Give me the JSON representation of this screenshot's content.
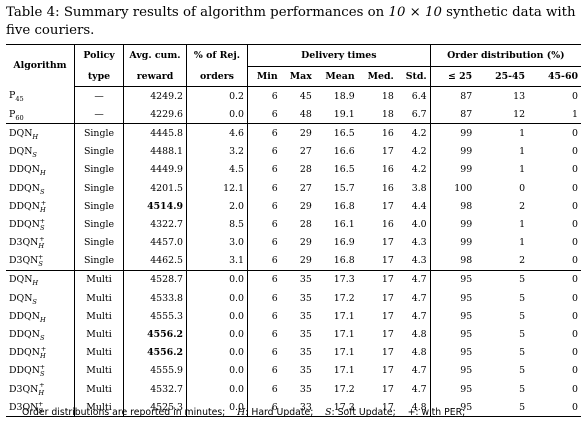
{
  "caption": {
    "label": "Table 4:",
    "text_before": "Summary results of algorithm performances on",
    "math": "10 × 10",
    "text_after": "synthetic data with five couriers."
  },
  "headers": {
    "algorithm": "Algorithm",
    "policy_1": "Policy",
    "policy_2": "type",
    "reward_1": "Avg. cum.",
    "reward_2": "reward",
    "rej_1": "% of Rej.",
    "rej_2": "orders",
    "delivery_group": "Delivery times",
    "min": "Min",
    "max": "Max",
    "mean": "Mean",
    "med": "Med.",
    "std": "Std.",
    "order_group": "Order distribution (%)",
    "d1": "≤ 25",
    "d2": "25-45",
    "d3": "45-60"
  },
  "groups": [
    {
      "rows": [
        {
          "alg": "P",
          "sub": "45",
          "sup": "",
          "policy": "—",
          "reward": "4249.2",
          "rej": "0.2",
          "min": "6",
          "max": "45",
          "mean": "18.9",
          "med": "18",
          "std": "6.4",
          "d1": "87",
          "d2": "13",
          "d3": "0"
        },
        {
          "alg": "P",
          "sub": "60",
          "sup": "",
          "policy": "—",
          "reward": "4229.6",
          "rej": "0.0",
          "min": "6",
          "max": "48",
          "mean": "19.1",
          "med": "18",
          "std": "6.7",
          "d1": "87",
          "d2": "12",
          "d3": "1"
        }
      ]
    },
    {
      "rows": [
        {
          "alg": "DQN",
          "sub": "H",
          "sup": "",
          "policy": "Single",
          "reward": "4445.8",
          "rej": "4.6",
          "min": "6",
          "max": "29",
          "mean": "16.5",
          "med": "16",
          "std": "4.2",
          "d1": "99",
          "d2": "1",
          "d3": "0"
        },
        {
          "alg": "DQN",
          "sub": "S",
          "sup": "",
          "policy": "Single",
          "reward": "4488.1",
          "rej": "3.2",
          "min": "6",
          "max": "27",
          "mean": "16.6",
          "med": "17",
          "std": "4.2",
          "d1": "99",
          "d2": "1",
          "d3": "0"
        },
        {
          "alg": "DDQN",
          "sub": "H",
          "sup": "",
          "policy": "Single",
          "reward": "4449.9",
          "rej": "4.5",
          "min": "6",
          "max": "28",
          "mean": "16.5",
          "med": "16",
          "std": "4.2",
          "d1": "99",
          "d2": "1",
          "d3": "0"
        },
        {
          "alg": "DDQN",
          "sub": "S",
          "sup": "",
          "policy": "Single",
          "reward": "4201.5",
          "rej": "12.1",
          "min": "6",
          "max": "27",
          "mean": "15.7",
          "med": "16",
          "std": "3.8",
          "d1": "100",
          "d2": "0",
          "d3": "0"
        },
        {
          "alg": "DDQN",
          "sub": "H",
          "sup": "+",
          "policy": "Single",
          "reward": "4514.9",
          "bold": true,
          "rej": "2.0",
          "min": "6",
          "max": "29",
          "mean": "16.8",
          "med": "17",
          "std": "4.4",
          "d1": "98",
          "d2": "2",
          "d3": "0"
        },
        {
          "alg": "DDQN",
          "sub": "S",
          "sup": "+",
          "policy": "Single",
          "reward": "4322.7",
          "rej": "8.5",
          "min": "6",
          "max": "28",
          "mean": "16.1",
          "med": "16",
          "std": "4.0",
          "d1": "99",
          "d2": "1",
          "d3": "0"
        },
        {
          "alg": "D3QN",
          "sub": "H",
          "sup": "+",
          "policy": "Single",
          "reward": "4457.0",
          "rej": "3.0",
          "min": "6",
          "max": "29",
          "mean": "16.9",
          "med": "17",
          "std": "4.3",
          "d1": "99",
          "d2": "1",
          "d3": "0"
        },
        {
          "alg": "D3QN",
          "sub": "S",
          "sup": "+",
          "policy": "Single",
          "reward": "4462.5",
          "rej": "3.1",
          "min": "6",
          "max": "29",
          "mean": "16.8",
          "med": "17",
          "std": "4.3",
          "d1": "98",
          "d2": "2",
          "d3": "0"
        }
      ]
    },
    {
      "rows": [
        {
          "alg": "DQN",
          "sub": "H",
          "sup": "",
          "policy": "Multi",
          "reward": "4528.7",
          "rej": "0.0",
          "min": "6",
          "max": "35",
          "mean": "17.3",
          "med": "17",
          "std": "4.7",
          "d1": "95",
          "d2": "5",
          "d3": "0"
        },
        {
          "alg": "DQN",
          "sub": "S",
          "sup": "",
          "policy": "Multi",
          "reward": "4533.8",
          "rej": "0.0",
          "min": "6",
          "max": "35",
          "mean": "17.2",
          "med": "17",
          "std": "4.7",
          "d1": "95",
          "d2": "5",
          "d3": "0"
        },
        {
          "alg": "DDQN",
          "sub": "H",
          "sup": "",
          "policy": "Multi",
          "reward": "4555.3",
          "rej": "0.0",
          "min": "6",
          "max": "35",
          "mean": "17.1",
          "med": "17",
          "std": "4.7",
          "d1": "95",
          "d2": "5",
          "d3": "0"
        },
        {
          "alg": "DDQN",
          "sub": "S",
          "sup": "",
          "policy": "Multi",
          "reward": "4556.2",
          "bold": true,
          "rej": "0.0",
          "min": "6",
          "max": "35",
          "mean": "17.1",
          "med": "17",
          "std": "4.8",
          "d1": "95",
          "d2": "5",
          "d3": "0"
        },
        {
          "alg": "DDQN",
          "sub": "H",
          "sup": "+",
          "policy": "Multi",
          "reward": "4556.2",
          "bold": true,
          "rej": "0.0",
          "min": "6",
          "max": "35",
          "mean": "17.1",
          "med": "17",
          "std": "4.8",
          "d1": "95",
          "d2": "5",
          "d3": "0"
        },
        {
          "alg": "DDQN",
          "sub": "S",
          "sup": "+",
          "policy": "Multi",
          "reward": "4555.9",
          "rej": "0.0",
          "min": "6",
          "max": "35",
          "mean": "17.1",
          "med": "17",
          "std": "4.7",
          "d1": "95",
          "d2": "5",
          "d3": "0"
        },
        {
          "alg": "D3QN",
          "sub": "H",
          "sup": "+",
          "policy": "Multi",
          "reward": "4532.7",
          "rej": "0.0",
          "min": "6",
          "max": "35",
          "mean": "17.2",
          "med": "17",
          "std": "4.7",
          "d1": "95",
          "d2": "5",
          "d3": "0"
        },
        {
          "alg": "D3QN",
          "sub": "S",
          "sup": "+",
          "policy": "Multi",
          "reward": "4525.3",
          "rej": "0.0",
          "min": "6",
          "max": "33",
          "mean": "17.3",
          "med": "17",
          "std": "4.8",
          "d1": "95",
          "d2": "5",
          "d3": "0"
        }
      ]
    }
  ],
  "footnote": {
    "part1": "Order distributions are reported in minutes;",
    "h_sym": "H",
    "h_text": ": Hard Update;",
    "s_sym": "S",
    "s_text": ": Soft Update;",
    "p_sym": "+",
    "p_text": ": with PER;"
  }
}
